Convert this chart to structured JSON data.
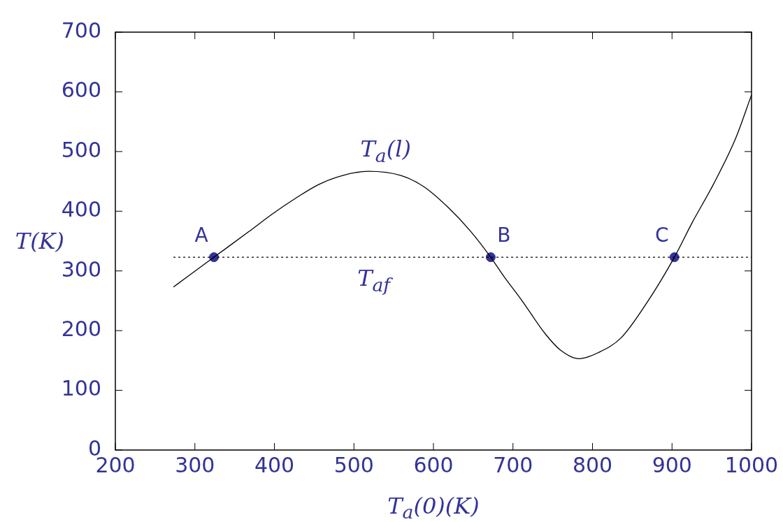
{
  "chart_data": {
    "type": "line",
    "xlabel": "T$_{a}$(0)(K)",
    "ylabel": "T(K)",
    "xlim": [
      200,
      1000
    ],
    "ylim": [
      0,
      700
    ],
    "xticks": [
      200,
      300,
      400,
      500,
      600,
      700,
      800,
      900,
      1000
    ],
    "yticks": [
      0,
      100,
      200,
      300,
      400,
      500,
      600,
      700
    ],
    "series": [
      {
        "color": "#000000",
        "marker": "none",
        "x": [
          273,
          324,
          368,
          398,
          427,
          456,
          486,
          518,
          559,
          588,
          618,
          647,
          672,
          688,
          712,
          741,
          760,
          783,
          807,
          836,
          869,
          903,
          925,
          952,
          980,
          1000
        ],
        "values": [
          273,
          323,
          366,
          396,
          422,
          445,
          460,
          467,
          460,
          441,
          407,
          366,
          323,
          292,
          249,
          194,
          167,
          153,
          163,
          188,
          248,
          323,
          380,
          445,
          522,
          595
        ]
      },
      {
        "color": "#000000",
        "marker": "none",
        "line_style": "dotted",
        "x": [
          273,
          1000
        ],
        "values": [
          323,
          323
        ]
      },
      {
        "type": "scatter",
        "color": "#333399",
        "marker": "circle",
        "x": [
          324,
          672,
          903
        ],
        "values": [
          323,
          323,
          323
        ],
        "value_labels": [
          "A",
          "B",
          "C"
        ]
      }
    ],
    "annotations": [
      {
        "text": "T$_{a}$(l)",
        "x": 540,
        "y": 464
      },
      {
        "text": "T$_{af}$",
        "x": 525,
        "y": 323
      }
    ]
  }
}
